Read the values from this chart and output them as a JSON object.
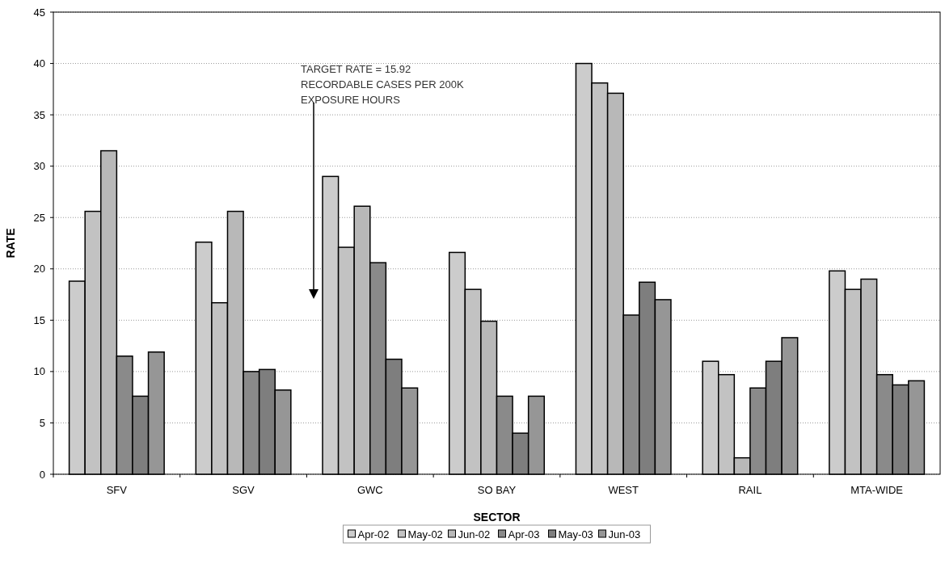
{
  "chart_data": {
    "type": "bar",
    "xlabel": "SECTOR",
    "ylabel": "RATE",
    "categories": [
      "SFV",
      "SGV",
      "GWC",
      "SO BAY",
      "WEST",
      "RAIL",
      "MTA-WIDE"
    ],
    "series": [
      {
        "name": "Apr-02",
        "color": "#cccccc",
        "values": [
          18.8,
          22.6,
          29.0,
          21.6,
          40.0,
          11.0,
          19.8
        ]
      },
      {
        "name": "May-02",
        "color": "#c2c2c2",
        "values": [
          25.6,
          16.7,
          22.1,
          18.0,
          38.1,
          9.7,
          18.0
        ]
      },
      {
        "name": "Jun-02",
        "color": "#b8b8b8",
        "values": [
          31.5,
          25.6,
          26.1,
          14.9,
          37.1,
          1.6,
          19.0
        ]
      },
      {
        "name": "Apr-03",
        "color": "#8a8a8a",
        "values": [
          11.5,
          10.0,
          20.6,
          7.6,
          15.5,
          8.4,
          9.7
        ]
      },
      {
        "name": "May-03",
        "color": "#7e7e7e",
        "values": [
          7.6,
          10.2,
          11.2,
          4.0,
          18.7,
          11.0,
          8.7
        ]
      },
      {
        "name": "Jun-03",
        "color": "#969696",
        "values": [
          11.9,
          8.2,
          8.4,
          7.6,
          17.0,
          13.3,
          9.1
        ]
      }
    ],
    "ylim": [
      0,
      45
    ],
    "yticks": [
      0,
      5,
      10,
      15,
      20,
      25,
      30,
      35,
      40,
      45
    ],
    "grid": "y",
    "legend": "bottom",
    "annotations": [
      "TARGET RATE = 15.92\nRECORDABLE CASES PER 200K\nEXPOSURE HOURS"
    ]
  }
}
